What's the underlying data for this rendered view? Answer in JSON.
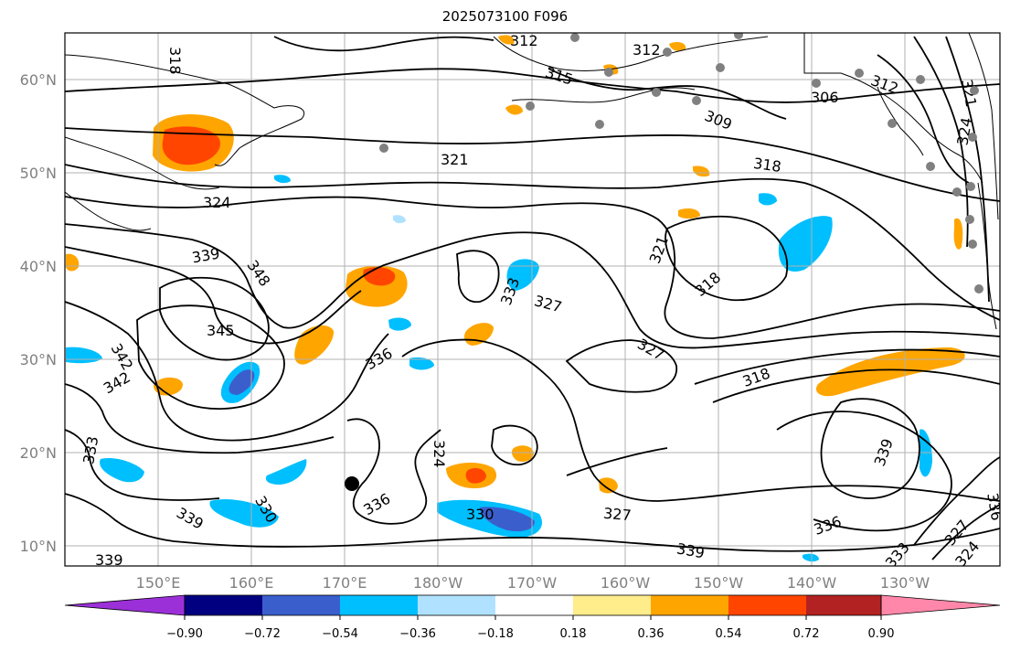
{
  "title": "2025073100 F096",
  "map": {
    "lat_labels": [
      "60°N",
      "50°N",
      "40°N",
      "30°N",
      "20°N",
      "10°N"
    ],
    "lon_labels": [
      "150°E",
      "160°E",
      "170°E",
      "180°W",
      "170°W",
      "160°W",
      "150°W",
      "140°W",
      "130°W"
    ],
    "contour_labels": [
      "318",
      "312",
      "312",
      "315",
      "321",
      "318",
      "309",
      "306",
      "312",
      "321",
      "324",
      "324",
      "339",
      "348",
      "345",
      "342",
      "342",
      "333",
      "327",
      "321",
      "318",
      "336",
      "327",
      "318",
      "333",
      "324",
      "330",
      "339",
      "336",
      "330",
      "327",
      "339",
      "336",
      "339",
      "333",
      "324",
      "327",
      "336",
      "339"
    ],
    "contour_color": "#000000",
    "coastline_color": "#000000",
    "station_marker_color": "#808080",
    "storm_marker_color": "#000000"
  },
  "colorbar": {
    "colors": [
      "#9b30d9",
      "#000080",
      "#3a5fcd",
      "#00bfff",
      "#b0e2ff",
      "#ffffff",
      "#ffec8b",
      "#ffa500",
      "#ff4500",
      "#b22222",
      "#ff88aa"
    ],
    "tick_labels": [
      "−0.90",
      "−0.72",
      "−0.54",
      "−0.36",
      "−0.18",
      "0.18",
      "0.36",
      "0.54",
      "0.72",
      "0.90"
    ],
    "tick_values": [
      -0.9,
      -0.72,
      -0.54,
      -0.36,
      -0.18,
      0.18,
      0.36,
      0.54,
      0.72,
      0.9
    ]
  }
}
